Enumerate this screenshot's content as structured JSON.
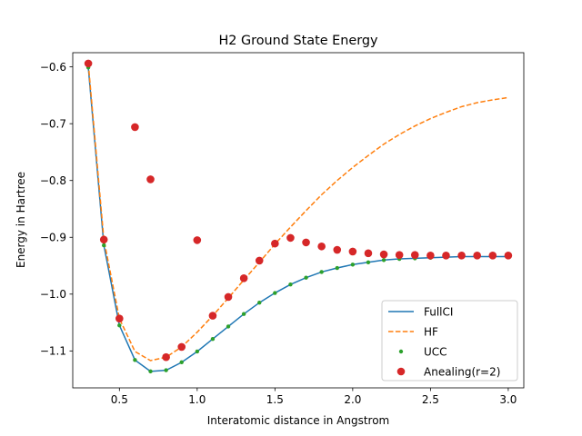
{
  "chart_data": {
    "type": "line",
    "title": "H2 Ground State Energy",
    "xlabel": "Interatomic distance in Angstrom",
    "ylabel": "Energy in Hartree",
    "xlim": [
      0.2,
      3.1
    ],
    "ylim": [
      -1.165,
      -0.575
    ],
    "xticks": [
      0.5,
      1.0,
      1.5,
      2.0,
      2.5,
      3.0
    ],
    "xtick_labels": [
      "0.5",
      "1.0",
      "1.5",
      "2.0",
      "2.5",
      "3.0"
    ],
    "yticks": [
      -1.1,
      -1.0,
      -0.9,
      -0.8,
      -0.7,
      -0.6
    ],
    "ytick_labels": [
      "−1.1",
      "−1.0",
      "−0.9",
      "−0.8",
      "−0.7",
      "−0.6"
    ],
    "grid": false,
    "legend_position": "lower-right",
    "series": [
      {
        "name": "FullCI",
        "style": "line",
        "color": "#1f77b4",
        "x": [
          0.3,
          0.4,
          0.5,
          0.6,
          0.7,
          0.8,
          0.9,
          1.0,
          1.1,
          1.2,
          1.3,
          1.4,
          1.5,
          1.6,
          1.7,
          1.8,
          1.9,
          2.0,
          2.1,
          2.2,
          2.3,
          2.4,
          2.5,
          2.6,
          2.7,
          2.8,
          2.9,
          3.0
        ],
        "y": [
          -0.601,
          -0.914,
          -1.055,
          -1.116,
          -1.136,
          -1.134,
          -1.12,
          -1.101,
          -1.079,
          -1.057,
          -1.035,
          -1.015,
          -0.998,
          -0.983,
          -0.971,
          -0.961,
          -0.954,
          -0.948,
          -0.944,
          -0.94,
          -0.938,
          -0.937,
          -0.936,
          -0.935,
          -0.934,
          -0.934,
          -0.934,
          -0.934
        ]
      },
      {
        "name": "HF",
        "style": "dashed",
        "color": "#ff7f0e",
        "x": [
          0.3,
          0.4,
          0.5,
          0.6,
          0.7,
          0.8,
          0.9,
          1.0,
          1.1,
          1.2,
          1.3,
          1.4,
          1.5,
          1.6,
          1.7,
          1.8,
          1.9,
          2.0,
          2.1,
          2.2,
          2.3,
          2.4,
          2.5,
          2.6,
          2.7,
          2.8,
          2.9,
          3.0
        ],
        "y": [
          -0.594,
          -0.904,
          -1.043,
          -1.101,
          -1.117,
          -1.111,
          -1.093,
          -1.067,
          -1.038,
          -1.007,
          -0.975,
          -0.944,
          -0.912,
          -0.882,
          -0.853,
          -0.825,
          -0.8,
          -0.777,
          -0.756,
          -0.736,
          -0.719,
          -0.704,
          -0.691,
          -0.68,
          -0.67,
          -0.663,
          -0.658,
          -0.654
        ]
      },
      {
        "name": "UCC",
        "style": "small-dots",
        "color": "#2ca02c",
        "x": [
          0.3,
          0.4,
          0.5,
          0.6,
          0.7,
          0.8,
          0.9,
          1.0,
          1.1,
          1.2,
          1.3,
          1.4,
          1.5,
          1.6,
          1.7,
          1.8,
          1.9,
          2.0,
          2.1,
          2.2,
          2.3,
          2.4,
          2.5,
          2.6,
          2.7,
          2.8,
          2.9,
          3.0
        ],
        "y": [
          -0.601,
          -0.914,
          -1.055,
          -1.116,
          -1.136,
          -1.134,
          -1.12,
          -1.101,
          -1.079,
          -1.057,
          -1.035,
          -1.015,
          -0.998,
          -0.983,
          -0.971,
          -0.961,
          -0.954,
          -0.948,
          -0.944,
          -0.94,
          -0.938,
          -0.937,
          -0.936,
          -0.935,
          -0.934,
          -0.934,
          -0.934,
          -0.934
        ]
      },
      {
        "name": "Anealing(r=2)",
        "style": "large-dots",
        "color": "#d62728",
        "x": [
          0.3,
          0.4,
          0.5,
          0.6,
          0.7,
          0.8,
          0.9,
          1.0,
          1.1,
          1.2,
          1.3,
          1.4,
          1.5,
          1.6,
          1.7,
          1.8,
          1.9,
          2.0,
          2.1,
          2.2,
          2.3,
          2.4,
          2.5,
          2.6,
          2.7,
          2.8,
          2.9,
          3.0
        ],
        "y": [
          -0.594,
          -0.904,
          -1.043,
          -0.706,
          -0.798,
          -1.111,
          -1.093,
          -0.905,
          -1.038,
          -1.005,
          -0.972,
          -0.941,
          -0.911,
          -0.901,
          -0.909,
          -0.916,
          -0.922,
          -0.925,
          -0.928,
          -0.93,
          -0.931,
          -0.931,
          -0.932,
          -0.932,
          -0.932,
          -0.932,
          -0.932,
          -0.932
        ]
      }
    ]
  }
}
